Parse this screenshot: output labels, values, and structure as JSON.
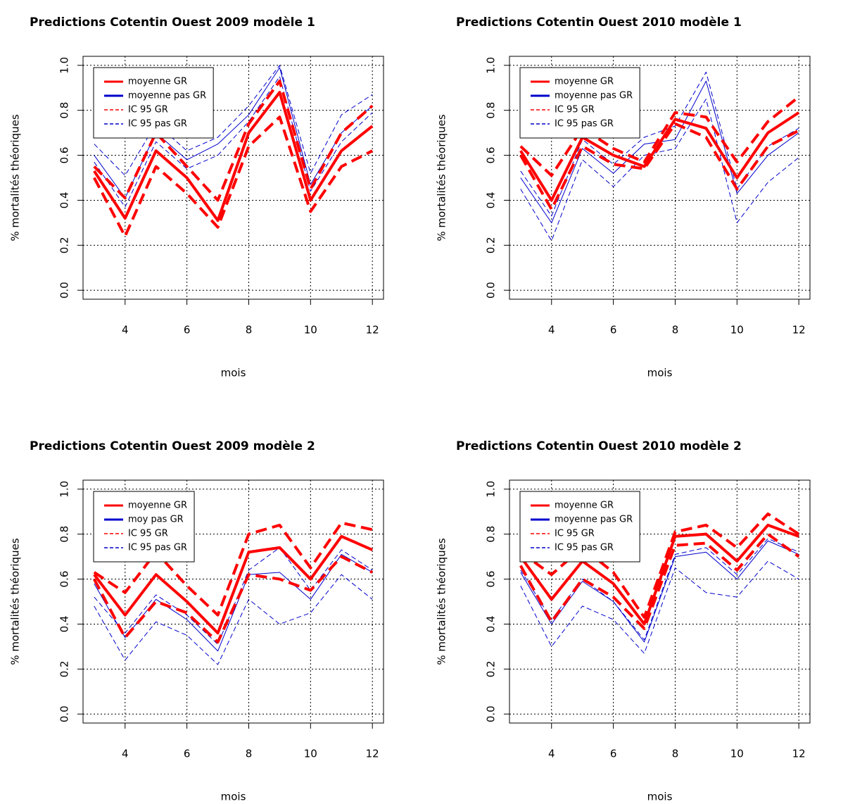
{
  "chart_data": [
    {
      "type": "line",
      "title": "Predictions Cotentin Ouest 2009 modèle 1",
      "xlabel": "mois",
      "ylabel": "% mortalités théoriques",
      "x": [
        3,
        4,
        5,
        6,
        7,
        8,
        9,
        10,
        11,
        12
      ],
      "xlim": [
        2.64,
        12.36
      ],
      "xticks": [
        4,
        6,
        8,
        10,
        12
      ],
      "ylim": [
        -0.04,
        1.04
      ],
      "yticks": [
        {
          "value": 0,
          "label": "0.0"
        },
        0.2,
        0.4,
        0.6,
        0.8,
        {
          "value": 1,
          "label": "1.0"
        }
      ],
      "grid": true,
      "legend": "top-left",
      "series": [
        {
          "name": "moyenne GR",
          "color": "#ff0000",
          "width": 4,
          "dashed": false,
          "values": [
            0.53,
            0.32,
            0.62,
            0.5,
            0.31,
            0.7,
            0.88,
            0.4,
            0.62,
            0.73
          ]
        },
        {
          "name": "moyenne pas GR",
          "color": "#0000cc",
          "width": 1,
          "dashed": false,
          "values": [
            0.6,
            0.41,
            0.7,
            0.58,
            0.65,
            0.78,
            0.99,
            0.47,
            0.7,
            0.82
          ]
        },
        {
          "name": "IC 95 GR",
          "color": "#ff0000",
          "width": 4,
          "dashed": true,
          "lower": [
            0.5,
            0.24,
            0.55,
            0.43,
            0.28,
            0.64,
            0.77,
            0.35,
            0.55,
            0.62
          ],
          "upper": [
            0.55,
            0.41,
            0.7,
            0.55,
            0.4,
            0.74,
            0.93,
            0.45,
            0.7,
            0.82
          ]
        },
        {
          "name": "IC 95 pas GR",
          "color": "#0000cc",
          "width": 1,
          "dashed": true,
          "lower": [
            0.57,
            0.37,
            0.66,
            0.54,
            0.6,
            0.75,
            0.95,
            0.44,
            0.66,
            0.79
          ],
          "upper": [
            0.65,
            0.51,
            0.74,
            0.62,
            0.68,
            0.82,
            1.0,
            0.52,
            0.78,
            0.87
          ]
        }
      ]
    },
    {
      "type": "line",
      "title": "Predictions Cotentin Ouest 2010 modèle 1",
      "xlabel": "mois",
      "ylabel": "% mortalités théoriques",
      "x": [
        3,
        4,
        5,
        6,
        7,
        8,
        9,
        10,
        11,
        12
      ],
      "xlim": [
        2.64,
        12.36
      ],
      "xticks": [
        4,
        6,
        8,
        10,
        12
      ],
      "ylim": [
        -0.04,
        1.04
      ],
      "yticks": [
        {
          "value": 0,
          "label": "0.0"
        },
        0.2,
        0.4,
        0.6,
        0.8,
        {
          "value": 1,
          "label": "1.0"
        }
      ],
      "grid": true,
      "legend": "top-left",
      "series": [
        {
          "name": "moyenne GR",
          "color": "#ff0000",
          "width": 4,
          "dashed": false,
          "values": [
            0.62,
            0.4,
            0.68,
            0.6,
            0.55,
            0.76,
            0.72,
            0.5,
            0.7,
            0.79
          ]
        },
        {
          "name": "moyenne pas GR",
          "color": "#0000cc",
          "width": 1,
          "dashed": false,
          "values": [
            0.5,
            0.3,
            0.63,
            0.52,
            0.65,
            0.67,
            0.93,
            0.43,
            0.6,
            0.7
          ]
        },
        {
          "name": "IC 95 GR",
          "color": "#ff0000",
          "width": 4,
          "dashed": true,
          "lower": [
            0.6,
            0.36,
            0.64,
            0.56,
            0.54,
            0.74,
            0.68,
            0.45,
            0.64,
            0.71
          ],
          "upper": [
            0.64,
            0.51,
            0.72,
            0.63,
            0.57,
            0.79,
            0.77,
            0.57,
            0.75,
            0.86
          ]
        },
        {
          "name": "IC 95 pas GR",
          "color": "#0000cc",
          "width": 1,
          "dashed": true,
          "lower": [
            0.45,
            0.22,
            0.58,
            0.46,
            0.6,
            0.63,
            0.85,
            0.3,
            0.48,
            0.59
          ],
          "upper": [
            0.53,
            0.33,
            0.67,
            0.56,
            0.68,
            0.73,
            0.97,
            0.45,
            0.64,
            0.72
          ]
        }
      ]
    },
    {
      "type": "line",
      "title": "Predictions Cotentin Ouest 2009 modèle 2",
      "xlabel": "mois",
      "ylabel": "% mortalités théoriques",
      "x": [
        3,
        4,
        5,
        6,
        7,
        8,
        9,
        10,
        11,
        12
      ],
      "xlim": [
        2.64,
        12.36
      ],
      "xticks": [
        4,
        6,
        8,
        10,
        12
      ],
      "ylim": [
        -0.04,
        1.04
      ],
      "yticks": [
        {
          "value": 0,
          "label": "0.0"
        },
        0.2,
        0.4,
        0.6,
        0.8,
        {
          "value": 1,
          "label": "1.0"
        }
      ],
      "grid": true,
      "legend": "top-left",
      "series": [
        {
          "name": "moyenne GR",
          "color": "#ff0000",
          "width": 4,
          "dashed": false,
          "values": [
            0.62,
            0.44,
            0.62,
            0.5,
            0.36,
            0.72,
            0.74,
            0.6,
            0.79,
            0.73
          ]
        },
        {
          "name": "moy pas GR",
          "color": "#0000cc",
          "width": 1,
          "dashed": false,
          "values": [
            0.58,
            0.34,
            0.51,
            0.42,
            0.28,
            0.62,
            0.63,
            0.51,
            0.71,
            0.63
          ]
        },
        {
          "name": "IC 95 GR",
          "color": "#ff0000",
          "width": 4,
          "dashed": true,
          "lower": [
            0.6,
            0.34,
            0.5,
            0.45,
            0.32,
            0.62,
            0.6,
            0.55,
            0.7,
            0.63
          ],
          "upper": [
            0.63,
            0.54,
            0.72,
            0.57,
            0.44,
            0.8,
            0.84,
            0.65,
            0.85,
            0.82
          ]
        },
        {
          "name": "IC 95 pas GR",
          "color": "#0000cc",
          "width": 1,
          "dashed": true,
          "lower": [
            0.48,
            0.24,
            0.41,
            0.35,
            0.22,
            0.51,
            0.4,
            0.45,
            0.62,
            0.51
          ],
          "upper": [
            0.52,
            0.36,
            0.53,
            0.44,
            0.31,
            0.64,
            0.74,
            0.55,
            0.73,
            0.64
          ]
        }
      ]
    },
    {
      "type": "line",
      "title": "Predictions Cotentin Ouest 2010 modèle 2",
      "xlabel": "mois",
      "ylabel": "% mortalités théoriques",
      "x": [
        3,
        4,
        5,
        6,
        7,
        8,
        9,
        10,
        11,
        12
      ],
      "xlim": [
        2.64,
        12.36
      ],
      "xticks": [
        4,
        6,
        8,
        10,
        12
      ],
      "ylim": [
        -0.04,
        1.04
      ],
      "yticks": [
        {
          "value": 0,
          "label": "0.0"
        },
        0.2,
        0.4,
        0.6,
        0.8,
        {
          "value": 1,
          "label": "1.0"
        }
      ],
      "grid": true,
      "legend": "top-left",
      "series": [
        {
          "name": "moyenne GR",
          "color": "#ff0000",
          "width": 4,
          "dashed": false,
          "values": [
            0.7,
            0.51,
            0.68,
            0.58,
            0.4,
            0.79,
            0.8,
            0.68,
            0.84,
            0.79
          ]
        },
        {
          "name": "moyenne pas GR",
          "color": "#0000cc",
          "width": 1,
          "dashed": false,
          "values": [
            0.63,
            0.4,
            0.59,
            0.5,
            0.32,
            0.7,
            0.72,
            0.6,
            0.77,
            0.71
          ]
        },
        {
          "name": "IC 95 GR",
          "color": "#ff0000",
          "width": 4,
          "dashed": true,
          "lower": [
            0.66,
            0.41,
            0.6,
            0.52,
            0.38,
            0.75,
            0.76,
            0.64,
            0.8,
            0.7
          ],
          "upper": [
            0.72,
            0.62,
            0.74,
            0.63,
            0.43,
            0.81,
            0.84,
            0.74,
            0.89,
            0.8
          ]
        },
        {
          "name": "IC 95 pas GR",
          "color": "#0000cc",
          "width": 1,
          "dashed": true,
          "lower": [
            0.57,
            0.3,
            0.48,
            0.42,
            0.27,
            0.65,
            0.54,
            0.52,
            0.68,
            0.6
          ],
          "upper": [
            0.64,
            0.42,
            0.6,
            0.5,
            0.33,
            0.71,
            0.74,
            0.62,
            0.78,
            0.72
          ]
        }
      ]
    }
  ]
}
